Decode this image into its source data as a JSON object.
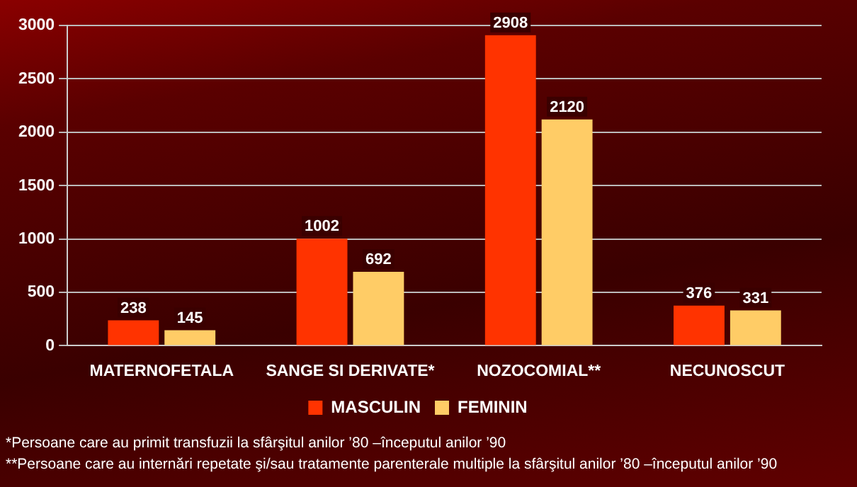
{
  "chart_data": {
    "type": "bar",
    "categories": [
      "MATERNOFETALA",
      "SANGE SI DERIVATE*",
      "NOZOCOMIAL**",
      "NECUNOSCUT"
    ],
    "series": [
      {
        "name": "MASCULIN",
        "color": "#ff3300",
        "values": [
          238,
          1002,
          2908,
          376
        ]
      },
      {
        "name": "FEMININ",
        "color": "#ffcc66",
        "values": [
          145,
          692,
          2120,
          331
        ]
      }
    ],
    "ylim": [
      0,
      3000
    ],
    "yticks": [
      0,
      500,
      1000,
      1500,
      2000,
      2500,
      3000
    ],
    "grid": "y",
    "legend": "bottom",
    "data_labels": true,
    "annotations": [
      "*Persoane care au primit transfuzii la sfârşitul anilor ’80 –începutul anilor ’90",
      "**Persoane care au internări repetate şi/sau tratamente parenterale multiple la sfârşitul anilor ’80 –începutul anilor ’90"
    ]
  }
}
